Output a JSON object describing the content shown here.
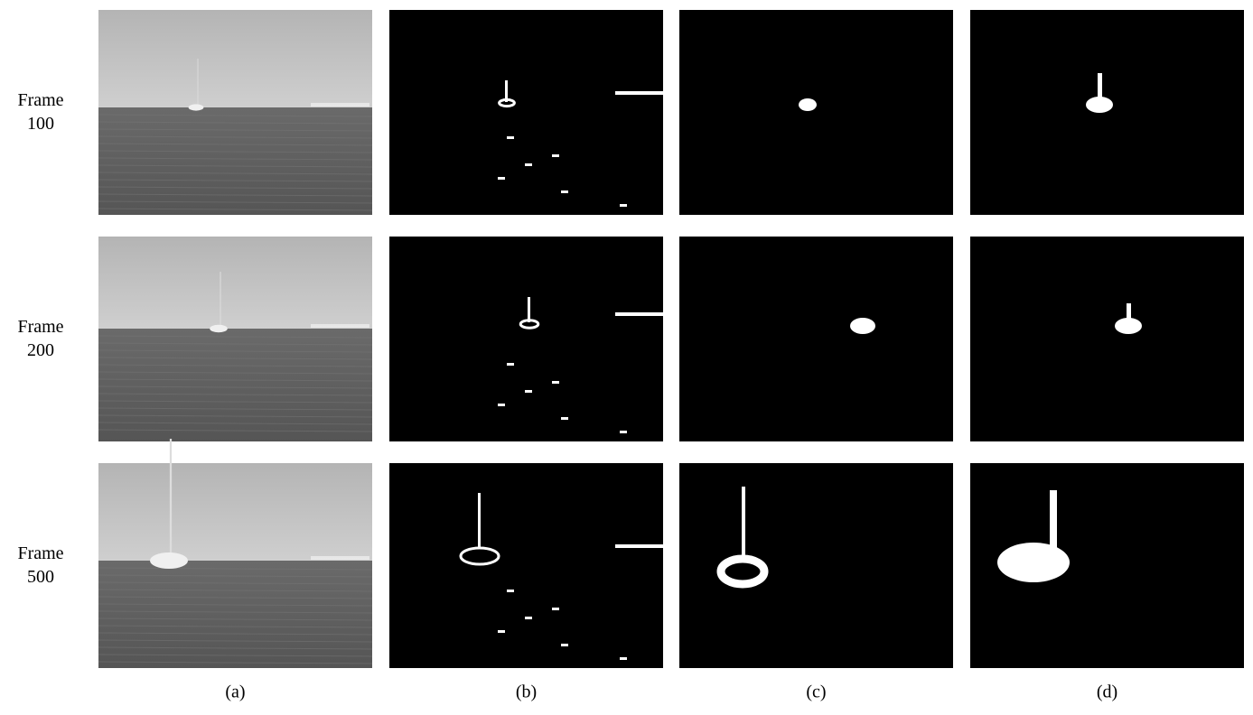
{
  "rows": [
    {
      "label": [
        "Frame",
        "100"
      ]
    },
    {
      "label": [
        "Frame",
        "200"
      ]
    },
    {
      "label": [
        "Frame",
        "500"
      ]
    }
  ],
  "columns": [
    "(a)",
    "(b)",
    "(c)",
    "(d)"
  ]
}
